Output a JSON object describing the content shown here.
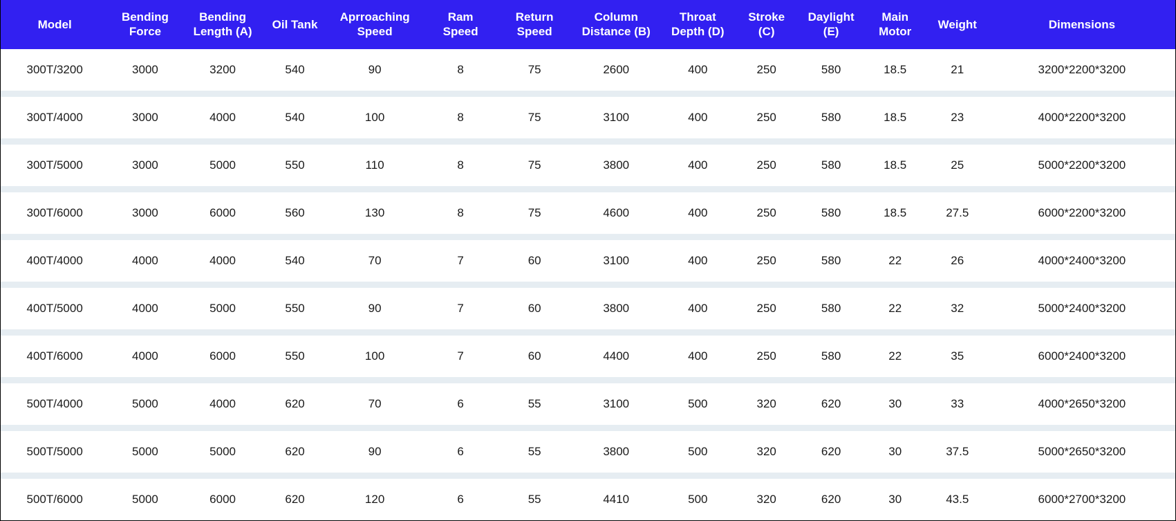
{
  "table": {
    "type": "table",
    "header_bg": "#3220f1",
    "header_text_color": "#ffffff",
    "row_bg": "#ffffff",
    "separator_bg": "#e6edf2",
    "cell_text_color": "#1a1a1a",
    "header_fontsize_pt": 13,
    "cell_fontsize_pt": 13,
    "columns": [
      {
        "key": "model",
        "label": "Model",
        "width_pct": 9.2,
        "align": "center"
      },
      {
        "key": "bending_force",
        "label": "Bending Force",
        "width_pct": 6.2,
        "align": "center"
      },
      {
        "key": "bending_length_a",
        "label": "Bending Length (A)",
        "width_pct": 7.0,
        "align": "center"
      },
      {
        "key": "oil_tank",
        "label": "Oil Tank",
        "width_pct": 5.3,
        "align": "center"
      },
      {
        "key": "approach_speed",
        "label": "Aprroaching Speed",
        "width_pct": 8.3,
        "align": "center"
      },
      {
        "key": "ram_speed",
        "label": "Ram Speed",
        "width_pct": 6.3,
        "align": "center"
      },
      {
        "key": "return_speed",
        "label": "Return Speed",
        "width_pct": 6.3,
        "align": "center"
      },
      {
        "key": "column_dist_b",
        "label": "Column Distance (B)",
        "width_pct": 7.6,
        "align": "center"
      },
      {
        "key": "throat_depth_d",
        "label": "Throat Depth (D)",
        "width_pct": 6.3,
        "align": "center"
      },
      {
        "key": "stroke_c",
        "label": "Stroke (C)",
        "width_pct": 5.4,
        "align": "center"
      },
      {
        "key": "daylight_e",
        "label": "Daylight (E)",
        "width_pct": 5.6,
        "align": "center"
      },
      {
        "key": "main_motor",
        "label": "Main Motor",
        "width_pct": 5.3,
        "align": "center"
      },
      {
        "key": "weight",
        "label": "Weight",
        "width_pct": 5.3,
        "align": "center"
      },
      {
        "key": "dimensions",
        "label": "Dimensions",
        "width_pct": 15.9,
        "align": "center"
      }
    ],
    "rows": [
      [
        "300T/3200",
        "3000",
        "3200",
        "540",
        "90",
        "8",
        "75",
        "2600",
        "400",
        "250",
        "580",
        "18.5",
        "21",
        "3200*2200*3200"
      ],
      [
        "300T/4000",
        "3000",
        "4000",
        "540",
        "100",
        "8",
        "75",
        "3100",
        "400",
        "250",
        "580",
        "18.5",
        "23",
        "4000*2200*3200"
      ],
      [
        "300T/5000",
        "3000",
        "5000",
        "550",
        "110",
        "8",
        "75",
        "3800",
        "400",
        "250",
        "580",
        "18.5",
        "25",
        "5000*2200*3200"
      ],
      [
        "300T/6000",
        "3000",
        "6000",
        "560",
        "130",
        "8",
        "75",
        "4600",
        "400",
        "250",
        "580",
        "18.5",
        "27.5",
        "6000*2200*3200"
      ],
      [
        "400T/4000",
        "4000",
        "4000",
        "540",
        "70",
        "7",
        "60",
        "3100",
        "400",
        "250",
        "580",
        "22",
        "26",
        "4000*2400*3200"
      ],
      [
        "400T/5000",
        "4000",
        "5000",
        "550",
        "90",
        "7",
        "60",
        "3800",
        "400",
        "250",
        "580",
        "22",
        "32",
        "5000*2400*3200"
      ],
      [
        "400T/6000",
        "4000",
        "6000",
        "550",
        "100",
        "7",
        "60",
        "4400",
        "400",
        "250",
        "580",
        "22",
        "35",
        "6000*2400*3200"
      ],
      [
        "500T/4000",
        "5000",
        "4000",
        "620",
        "70",
        "6",
        "55",
        "3100",
        "500",
        "320",
        "620",
        "30",
        "33",
        "4000*2650*3200"
      ],
      [
        "500T/5000",
        "5000",
        "5000",
        "620",
        "90",
        "6",
        "55",
        "3800",
        "500",
        "320",
        "620",
        "30",
        "37.5",
        "5000*2650*3200"
      ],
      [
        "500T/6000",
        "5000",
        "6000",
        "620",
        "120",
        "6",
        "55",
        "4410",
        "500",
        "320",
        "620",
        "30",
        "43.5",
        "6000*2700*3200"
      ]
    ]
  }
}
